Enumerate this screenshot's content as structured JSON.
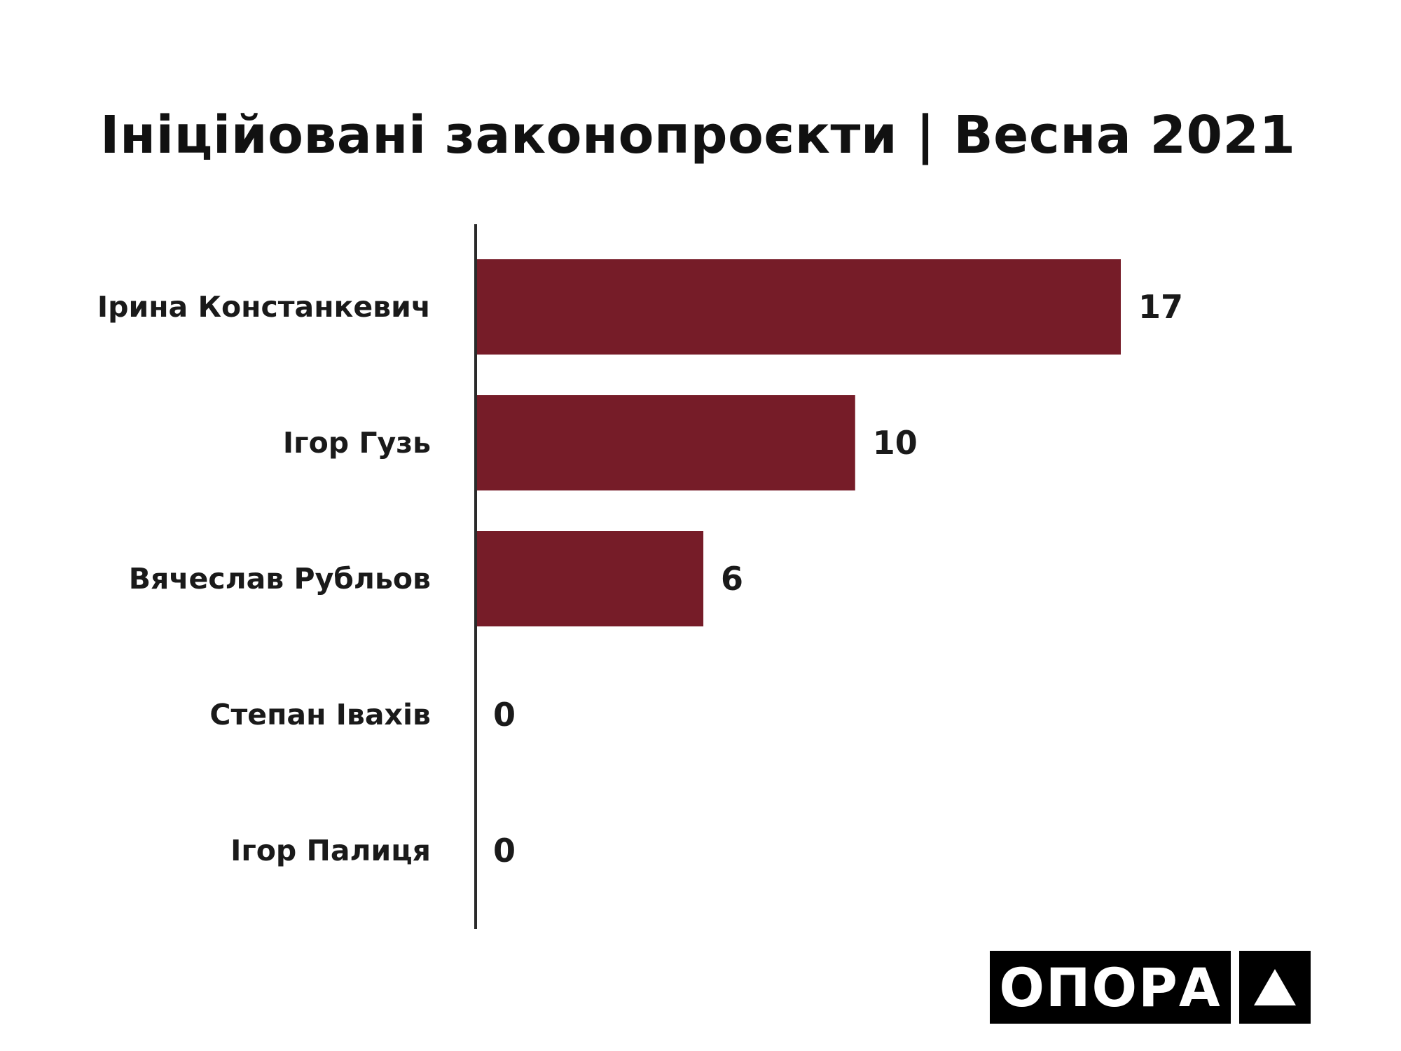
{
  "title": "Ініційовані законопроєкти | Весна 2021",
  "chart_data": {
    "type": "bar",
    "orientation": "horizontal",
    "title": "Ініційовані законопроєкти | Весна 2021",
    "categories": [
      "Ірина Констанкевич",
      "Ігор Гузь",
      "Вячеслав Рубльов",
      "Степан Івахів",
      "Ігор Палиця"
    ],
    "values": [
      17,
      10,
      6,
      0,
      0
    ],
    "xlim": [
      0,
      17
    ],
    "grid": false,
    "bar_color": "#761c28"
  },
  "logo": {
    "text": "ОПОРА",
    "icon": "triangle-icon"
  },
  "colors": {
    "bar": "#761c28",
    "axis": "#2a2a2a",
    "text": "#111111",
    "logo_bg": "#000000"
  }
}
